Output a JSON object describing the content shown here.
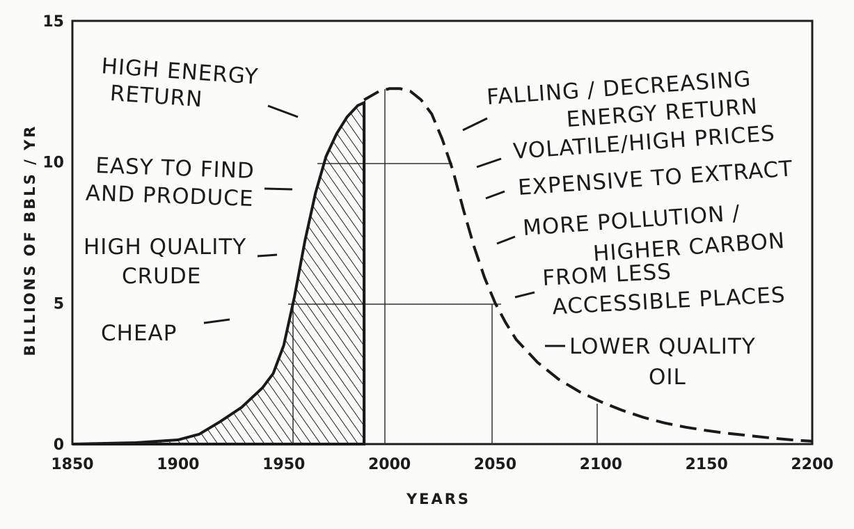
{
  "chart_data": {
    "type": "area",
    "title": "",
    "xlabel": "YEARS",
    "ylabel": "BILLIONS OF BBLS / YR",
    "xlim": [
      1850,
      2200
    ],
    "ylim": [
      0,
      15
    ],
    "xticks": [
      "1850",
      "1900",
      "1950",
      "2000",
      "2050",
      "2100",
      "2150",
      "2200"
    ],
    "yticks": [
      "0",
      "5",
      "10",
      "15"
    ],
    "grid": "partial",
    "series": [
      {
        "style": "solid-hatched",
        "x": [
          1850,
          1880,
          1900,
          1910,
          1920,
          1930,
          1940,
          1945,
          1950,
          1955,
          1960,
          1965,
          1970,
          1975,
          1980,
          1985,
          1988
        ],
        "y": [
          0.0,
          0.05,
          0.15,
          0.35,
          0.8,
          1.3,
          2.0,
          2.5,
          3.5,
          5.2,
          7.2,
          8.9,
          10.2,
          11.0,
          11.6,
          12.0,
          12.1
        ]
      },
      {
        "style": "dashed",
        "x": [
          1988,
          1995,
          2000,
          2005,
          2010,
          2015,
          2020,
          2025,
          2030,
          2035,
          2040,
          2045,
          2050,
          2055,
          2060,
          2070,
          2080,
          2090,
          2100,
          2110,
          2120,
          2130,
          2140,
          2150,
          2160,
          2170,
          2180,
          2190,
          2200
        ],
        "y": [
          12.2,
          12.5,
          12.6,
          12.6,
          12.5,
          12.2,
          11.7,
          10.8,
          9.7,
          8.3,
          7.0,
          5.9,
          5.0,
          4.3,
          3.7,
          2.9,
          2.3,
          1.85,
          1.5,
          1.2,
          0.95,
          0.75,
          0.6,
          0.48,
          0.38,
          0.3,
          0.22,
          0.15,
          0.1
        ]
      }
    ],
    "annotations_left": [
      {
        "lines": [
          "HIGH ENERGY",
          "RETURN"
        ]
      },
      {
        "lines": [
          "EASY TO FIND",
          "AND PRODUCE"
        ]
      },
      {
        "lines": [
          "HIGH QUALITY",
          "CRUDE"
        ]
      },
      {
        "lines": [
          "CHEAP"
        ]
      }
    ],
    "annotations_right": [
      {
        "lines": [
          "FALLING / DECREASING",
          "ENERGY RETURN"
        ]
      },
      {
        "lines": [
          "VOLATILE/HIGH PRICES"
        ]
      },
      {
        "lines": [
          "EXPENSIVE TO EXTRACT"
        ]
      },
      {
        "lines": [
          "MORE POLLUTION /",
          "HIGHER CARBON"
        ]
      },
      {
        "lines": [
          "FROM LESS",
          "ACCESSIBLE PLACES"
        ]
      },
      {
        "lines": [
          "LOWER QUALITY",
          "OIL"
        ]
      }
    ]
  }
}
